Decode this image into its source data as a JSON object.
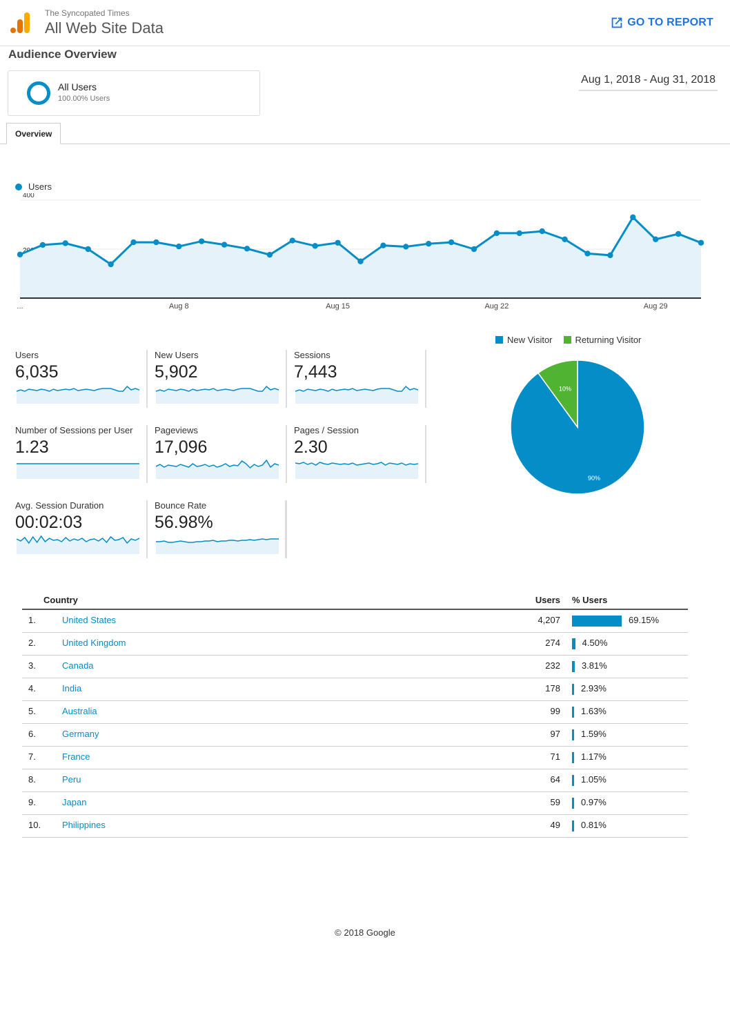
{
  "header": {
    "property": "The Syncopated Times",
    "view_name": "All Web Site Data",
    "go_to_report": "GO TO REPORT"
  },
  "section_title": "Audience Overview",
  "segment": {
    "name": "All Users",
    "pct": "100.00% Users"
  },
  "date_range": "Aug 1, 2018 - Aug 31, 2018",
  "tabs": [
    "Overview"
  ],
  "colors": {
    "accent": "#058dc7",
    "returning": "#50b432",
    "area_fill": "#e5f2f9"
  },
  "chart_data": [
    {
      "type": "area",
      "series": [
        {
          "name": "Users",
          "x": [
            "Aug 1",
            "Aug 2",
            "Aug 3",
            "Aug 4",
            "Aug 5",
            "Aug 6",
            "Aug 7",
            "Aug 8",
            "Aug 9",
            "Aug 10",
            "Aug 11",
            "Aug 12",
            "Aug 13",
            "Aug 14",
            "Aug 15",
            "Aug 16",
            "Aug 17",
            "Aug 18",
            "Aug 19",
            "Aug 20",
            "Aug 21",
            "Aug 22",
            "Aug 23",
            "Aug 24",
            "Aug 25",
            "Aug 26",
            "Aug 27",
            "Aug 28",
            "Aug 29",
            "Aug 30",
            "Aug 31"
          ],
          "values": [
            178,
            217,
            224,
            200,
            138,
            228,
            228,
            211,
            232,
            218,
            202,
            177,
            235,
            213,
            226,
            150,
            215,
            210,
            222,
            228,
            200,
            265,
            265,
            273,
            240,
            182,
            175,
            330,
            240,
            262,
            226
          ]
        }
      ],
      "y_ticks": [
        200,
        400
      ],
      "x_tick_labels": [
        "...",
        "Aug 8",
        "Aug 15",
        "Aug 22",
        "Aug 29"
      ],
      "ylim": [
        0,
        400
      ],
      "grid": true
    },
    {
      "type": "pie",
      "labels": [
        "New Visitor",
        "Returning Visitor"
      ],
      "values": [
        90,
        10
      ],
      "value_labels": [
        "90%",
        "10%"
      ],
      "legend": "top"
    }
  ],
  "metrics": [
    {
      "label": "Users",
      "value": "6,035",
      "spark": [
        18,
        20,
        18,
        21,
        20,
        19,
        21,
        20,
        18,
        21,
        19,
        20,
        21,
        20,
        22,
        19,
        20,
        21,
        20,
        19,
        21,
        22,
        22,
        22,
        20,
        18,
        18,
        25,
        20,
        22,
        20
      ]
    },
    {
      "label": "New Users",
      "value": "5,902",
      "spark": [
        18,
        20,
        18,
        21,
        20,
        19,
        21,
        20,
        18,
        21,
        19,
        20,
        21,
        20,
        22,
        19,
        20,
        21,
        20,
        19,
        21,
        22,
        22,
        22,
        20,
        18,
        18,
        25,
        20,
        22,
        20
      ]
    },
    {
      "label": "Sessions",
      "value": "7,443",
      "spark": [
        18,
        20,
        18,
        21,
        20,
        19,
        21,
        20,
        18,
        21,
        19,
        20,
        21,
        20,
        22,
        19,
        20,
        21,
        20,
        19,
        21,
        22,
        22,
        22,
        20,
        18,
        18,
        25,
        20,
        22,
        20
      ]
    },
    {
      "label": "Number of Sessions per User",
      "value": "1.23",
      "spark": [
        22,
        22,
        22,
        22,
        22,
        22,
        22,
        22,
        22,
        22,
        22,
        22,
        22,
        22,
        22,
        22,
        22,
        22,
        22,
        22,
        22,
        22,
        22,
        22,
        22,
        22,
        22,
        22,
        22,
        22,
        22
      ]
    },
    {
      "label": "Pageviews",
      "value": "17,096",
      "spark": [
        18,
        21,
        17,
        20,
        19,
        18,
        21,
        19,
        17,
        22,
        18,
        19,
        21,
        18,
        20,
        17,
        19,
        22,
        18,
        20,
        19,
        26,
        22,
        16,
        21,
        18,
        20,
        27,
        17,
        22,
        20
      ]
    },
    {
      "label": "Pages / Session",
      "value": "2.30",
      "spark": [
        23,
        22,
        24,
        21,
        23,
        20,
        24,
        22,
        21,
        23,
        22,
        21,
        22,
        21,
        23,
        20,
        21,
        22,
        23,
        21,
        22,
        24,
        20,
        23,
        22,
        21,
        23,
        20,
        22,
        21,
        22
      ]
    },
    {
      "label": "Avg. Session Duration",
      "value": "00:02:03",
      "spark": [
        22,
        19,
        24,
        16,
        25,
        17,
        26,
        18,
        23,
        20,
        21,
        18,
        24,
        19,
        22,
        20,
        23,
        18,
        21,
        22,
        19,
        23,
        17,
        25,
        20,
        21,
        24,
        16,
        22,
        20,
        23
      ]
    },
    {
      "label": "Bounce Rate",
      "value": "56.98%",
      "spark": [
        18,
        18,
        19,
        17,
        17,
        18,
        19,
        18,
        17,
        17,
        18,
        18,
        19,
        19,
        20,
        18,
        19,
        19,
        20,
        20,
        19,
        20,
        20,
        21,
        20,
        21,
        22,
        21,
        22,
        22,
        22
      ]
    }
  ],
  "table": {
    "headers": {
      "country": "Country",
      "users": "Users",
      "pct_users": "% Users"
    },
    "rows": [
      {
        "idx": "1.",
        "country": "United States",
        "users": "4,207",
        "pct_label": "69.15%",
        "pct": 69.15
      },
      {
        "idx": "2.",
        "country": "United Kingdom",
        "users": "274",
        "pct_label": "4.50%",
        "pct": 4.5
      },
      {
        "idx": "3.",
        "country": "Canada",
        "users": "232",
        "pct_label": "3.81%",
        "pct": 3.81
      },
      {
        "idx": "4.",
        "country": "India",
        "users": "178",
        "pct_label": "2.93%",
        "pct": 2.93
      },
      {
        "idx": "5.",
        "country": "Australia",
        "users": "99",
        "pct_label": "1.63%",
        "pct": 1.63
      },
      {
        "idx": "6.",
        "country": "Germany",
        "users": "97",
        "pct_label": "1.59%",
        "pct": 1.59
      },
      {
        "idx": "7.",
        "country": "France",
        "users": "71",
        "pct_label": "1.17%",
        "pct": 1.17
      },
      {
        "idx": "8.",
        "country": "Peru",
        "users": "64",
        "pct_label": "1.05%",
        "pct": 1.05
      },
      {
        "idx": "9.",
        "country": "Japan",
        "users": "59",
        "pct_label": "0.97%",
        "pct": 0.97
      },
      {
        "idx": "10.",
        "country": "Philippines",
        "users": "49",
        "pct_label": "0.81%",
        "pct": 0.81
      }
    ]
  },
  "footer": "© 2018 Google"
}
